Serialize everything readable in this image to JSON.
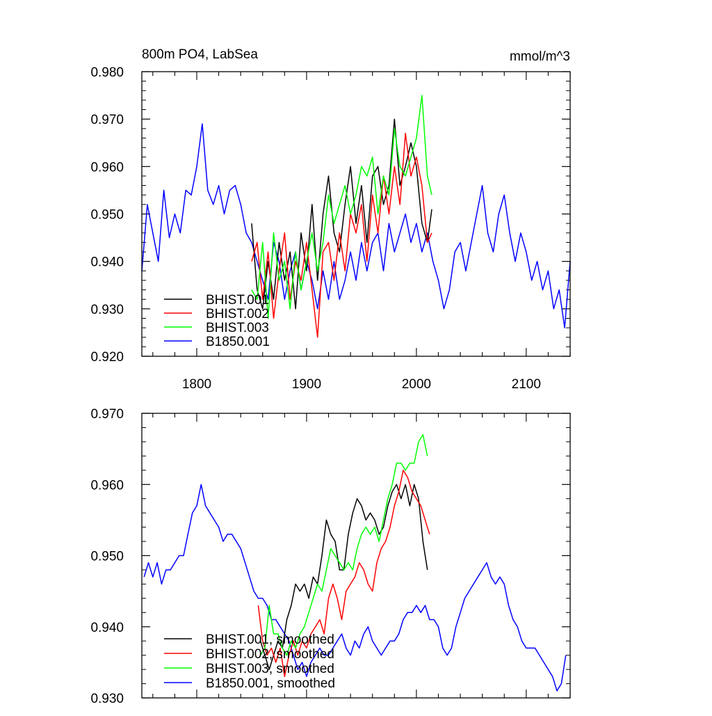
{
  "chart_data": [
    {
      "type": "line",
      "title": "800m PO4, LabSea",
      "units": "mmol/m^3",
      "xlabel": "",
      "ylabel": "",
      "xlim": [
        1750,
        2140
      ],
      "ylim": [
        0.92,
        0.98
      ],
      "xticks": [
        1800,
        1900,
        2000,
        2100
      ],
      "xtick_labels": [
        "1800",
        "1900",
        "2000",
        "2100"
      ],
      "yticks": [
        0.92,
        0.93,
        0.94,
        0.95,
        0.96,
        0.97,
        0.98
      ],
      "ytick_labels": [
        "0.920",
        "0.930",
        "0.940",
        "0.950",
        "0.960",
        "0.970",
        "0.980"
      ],
      "grid": false,
      "legend_position": "bottom-left",
      "series": [
        {
          "name": "BHIST.001",
          "color": "#000000",
          "x": [
            1850,
            1855,
            1860,
            1865,
            1870,
            1875,
            1880,
            1885,
            1890,
            1895,
            1900,
            1905,
            1910,
            1915,
            1920,
            1925,
            1930,
            1935,
            1940,
            1945,
            1950,
            1955,
            1960,
            1965,
            1970,
            1975,
            1980,
            1985,
            1990,
            1995,
            2000,
            2005,
            2010,
            2014
          ],
          "y": [
            0.948,
            0.934,
            0.93,
            0.94,
            0.932,
            0.944,
            0.936,
            0.942,
            0.93,
            0.946,
            0.938,
            0.952,
            0.936,
            0.95,
            0.958,
            0.946,
            0.942,
            0.952,
            0.96,
            0.948,
            0.956,
            0.944,
            0.958,
            0.96,
            0.952,
            0.956,
            0.97,
            0.956,
            0.96,
            0.965,
            0.96,
            0.948,
            0.944,
            0.951
          ]
        },
        {
          "name": "BHIST.002",
          "color": "#ff0000",
          "x": [
            1850,
            1855,
            1860,
            1865,
            1870,
            1875,
            1880,
            1885,
            1890,
            1895,
            1900,
            1905,
            1910,
            1915,
            1920,
            1925,
            1930,
            1935,
            1940,
            1945,
            1950,
            1955,
            1960,
            1965,
            1970,
            1975,
            1980,
            1985,
            1990,
            1995,
            2000,
            2005,
            2010,
            2014
          ],
          "y": [
            0.94,
            0.944,
            0.932,
            0.942,
            0.928,
            0.938,
            0.946,
            0.932,
            0.94,
            0.936,
            0.944,
            0.934,
            0.924,
            0.942,
            0.944,
            0.936,
            0.946,
            0.938,
            0.95,
            0.946,
            0.952,
            0.94,
            0.954,
            0.946,
            0.958,
            0.95,
            0.96,
            0.952,
            0.967,
            0.958,
            0.962,
            0.956,
            0.944,
            0.946
          ]
        },
        {
          "name": "BHIST.003",
          "color": "#00ff00",
          "x": [
            1850,
            1855,
            1860,
            1865,
            1870,
            1875,
            1880,
            1885,
            1890,
            1895,
            1900,
            1905,
            1910,
            1915,
            1920,
            1925,
            1930,
            1935,
            1940,
            1945,
            1950,
            1955,
            1960,
            1965,
            1970,
            1975,
            1980,
            1985,
            1990,
            1995,
            2000,
            2005,
            2010,
            2014
          ],
          "y": [
            0.934,
            0.932,
            0.944,
            0.928,
            0.946,
            0.936,
            0.94,
            0.93,
            0.942,
            0.934,
            0.94,
            0.946,
            0.938,
            0.944,
            0.954,
            0.948,
            0.952,
            0.956,
            0.95,
            0.954,
            0.96,
            0.958,
            0.962,
            0.95,
            0.958,
            0.954,
            0.968,
            0.96,
            0.958,
            0.962,
            0.966,
            0.975,
            0.958,
            0.954
          ]
        },
        {
          "name": "B1850.001",
          "color": "#0000ff",
          "x": [
            1750,
            1755,
            1760,
            1765,
            1770,
            1775,
            1780,
            1785,
            1790,
            1795,
            1800,
            1805,
            1810,
            1815,
            1820,
            1825,
            1830,
            1835,
            1840,
            1845,
            1850,
            1855,
            1860,
            1865,
            1870,
            1875,
            1880,
            1885,
            1890,
            1895,
            1900,
            1905,
            1910,
            1915,
            1920,
            1925,
            1930,
            1935,
            1940,
            1945,
            1950,
            1955,
            1960,
            1965,
            1970,
            1975,
            1980,
            1985,
            1990,
            1995,
            2000,
            2005,
            2010,
            2015,
            2020,
            2025,
            2030,
            2035,
            2040,
            2045,
            2050,
            2055,
            2060,
            2065,
            2070,
            2075,
            2080,
            2085,
            2090,
            2095,
            2100,
            2105,
            2110,
            2115,
            2120,
            2125,
            2130,
            2135,
            2140
          ],
          "y": [
            0.938,
            0.952,
            0.946,
            0.94,
            0.955,
            0.945,
            0.95,
            0.946,
            0.955,
            0.954,
            0.96,
            0.969,
            0.955,
            0.952,
            0.956,
            0.95,
            0.955,
            0.956,
            0.952,
            0.946,
            0.944,
            0.94,
            0.936,
            0.932,
            0.944,
            0.94,
            0.932,
            0.938,
            0.942,
            0.934,
            0.94,
            0.936,
            0.93,
            0.938,
            0.932,
            0.94,
            0.932,
            0.936,
            0.942,
            0.936,
            0.944,
            0.938,
            0.944,
            0.946,
            0.938,
            0.948,
            0.942,
            0.946,
            0.95,
            0.944,
            0.948,
            0.942,
            0.946,
            0.94,
            0.936,
            0.93,
            0.934,
            0.942,
            0.944,
            0.938,
            0.944,
            0.95,
            0.956,
            0.946,
            0.942,
            0.95,
            0.954,
            0.946,
            0.94,
            0.946,
            0.942,
            0.936,
            0.94,
            0.934,
            0.938,
            0.93,
            0.934,
            0.926,
            0.94
          ]
        }
      ],
      "legend": [
        "BHIST.001",
        "BHIST.002",
        "BHIST.003",
        "B1850.001"
      ]
    },
    {
      "type": "line",
      "title": "",
      "xlabel": "",
      "ylabel": "",
      "xlim": [
        1750,
        2140
      ],
      "ylim": [
        0.93,
        0.97
      ],
      "xticks": [
        1800,
        1900,
        2000,
        2100
      ],
      "yticks": [
        0.93,
        0.94,
        0.95,
        0.96,
        0.97
      ],
      "ytick_labels": [
        "0.930",
        "0.940",
        "0.950",
        "0.960",
        "0.970"
      ],
      "grid": false,
      "legend_position": "bottom-left",
      "series": [
        {
          "name": "BHIST.001, smoothed",
          "color": "#000000",
          "x": [
            1858,
            1862,
            1866,
            1870,
            1874,
            1878,
            1882,
            1886,
            1890,
            1894,
            1898,
            1902,
            1906,
            1910,
            1914,
            1918,
            1922,
            1926,
            1930,
            1934,
            1938,
            1942,
            1946,
            1950,
            1954,
            1958,
            1962,
            1966,
            1970,
            1974,
            1978,
            1982,
            1986,
            1990,
            1994,
            1998,
            2002,
            2006,
            2010
          ],
          "y": [
            0.938,
            0.936,
            0.934,
            0.936,
            0.938,
            0.937,
            0.941,
            0.943,
            0.946,
            0.945,
            0.946,
            0.944,
            0.947,
            0.946,
            0.95,
            0.955,
            0.953,
            0.952,
            0.948,
            0.948,
            0.953,
            0.956,
            0.958,
            0.957,
            0.955,
            0.956,
            0.955,
            0.953,
            0.954,
            0.957,
            0.959,
            0.96,
            0.958,
            0.96,
            0.957,
            0.96,
            0.958,
            0.952,
            0.948
          ]
        },
        {
          "name": "BHIST.002, smoothed",
          "color": "#ff0000",
          "x": [
            1856,
            1860,
            1864,
            1868,
            1872,
            1876,
            1880,
            1884,
            1888,
            1892,
            1896,
            1900,
            1904,
            1908,
            1912,
            1916,
            1920,
            1924,
            1928,
            1932,
            1936,
            1940,
            1944,
            1948,
            1952,
            1956,
            1960,
            1964,
            1968,
            1972,
            1976,
            1980,
            1984,
            1988,
            1992,
            1996,
            2000,
            2004,
            2008,
            2012
          ],
          "y": [
            0.943,
            0.938,
            0.936,
            0.937,
            0.935,
            0.937,
            0.933,
            0.936,
            0.938,
            0.936,
            0.938,
            0.937,
            0.939,
            0.94,
            0.941,
            0.939,
            0.944,
            0.946,
            0.944,
            0.941,
            0.945,
            0.946,
            0.947,
            0.949,
            0.948,
            0.946,
            0.945,
            0.949,
            0.951,
            0.952,
            0.954,
            0.957,
            0.959,
            0.962,
            0.961,
            0.959,
            0.958,
            0.957,
            0.955,
            0.953
          ]
        },
        {
          "name": "BHIST.003, smoothed",
          "color": "#00ff00",
          "x": [
            1858,
            1862,
            1866,
            1870,
            1874,
            1878,
            1882,
            1886,
            1890,
            1894,
            1898,
            1902,
            1906,
            1910,
            1914,
            1918,
            1922,
            1926,
            1930,
            1934,
            1938,
            1942,
            1946,
            1950,
            1954,
            1958,
            1962,
            1966,
            1970,
            1974,
            1978,
            1982,
            1986,
            1990,
            1994,
            1998,
            2002,
            2006,
            2010
          ],
          "y": [
            0.936,
            0.937,
            0.943,
            0.939,
            0.939,
            0.937,
            0.936,
            0.938,
            0.937,
            0.939,
            0.94,
            0.942,
            0.944,
            0.946,
            0.945,
            0.948,
            0.951,
            0.95,
            0.949,
            0.948,
            0.949,
            0.948,
            0.951,
            0.953,
            0.954,
            0.953,
            0.954,
            0.952,
            0.955,
            0.958,
            0.96,
            0.963,
            0.963,
            0.962,
            0.963,
            0.963,
            0.966,
            0.967,
            0.964
          ]
        },
        {
          "name": "B1850.001, smoothed",
          "color": "#0000ff",
          "x": [
            1752,
            1756,
            1760,
            1764,
            1768,
            1772,
            1776,
            1780,
            1784,
            1788,
            1792,
            1796,
            1800,
            1804,
            1808,
            1812,
            1816,
            1820,
            1824,
            1828,
            1832,
            1836,
            1840,
            1844,
            1848,
            1852,
            1856,
            1860,
            1864,
            1868,
            1872,
            1876,
            1880,
            1884,
            1888,
            1892,
            1896,
            1900,
            1904,
            1908,
            1912,
            1916,
            1920,
            1924,
            1928,
            1932,
            1936,
            1940,
            1944,
            1948,
            1952,
            1956,
            1960,
            1964,
            1968,
            1972,
            1976,
            1980,
            1984,
            1988,
            1992,
            1996,
            2000,
            2004,
            2008,
            2012,
            2016,
            2020,
            2024,
            2028,
            2032,
            2036,
            2040,
            2044,
            2048,
            2052,
            2056,
            2060,
            2064,
            2068,
            2072,
            2076,
            2080,
            2084,
            2088,
            2092,
            2096,
            2100,
            2104,
            2108,
            2112,
            2116,
            2120,
            2124,
            2128,
            2132,
            2136
          ],
          "y": [
            0.947,
            0.949,
            0.947,
            0.949,
            0.946,
            0.948,
            0.948,
            0.949,
            0.95,
            0.95,
            0.953,
            0.956,
            0.957,
            0.96,
            0.957,
            0.956,
            0.955,
            0.954,
            0.952,
            0.953,
            0.953,
            0.952,
            0.951,
            0.949,
            0.947,
            0.945,
            0.944,
            0.944,
            0.943,
            0.941,
            0.941,
            0.94,
            0.939,
            0.938,
            0.936,
            0.934,
            0.935,
            0.933,
            0.935,
            0.936,
            0.937,
            0.936,
            0.936,
            0.937,
            0.938,
            0.939,
            0.937,
            0.936,
            0.938,
            0.937,
            0.939,
            0.94,
            0.938,
            0.937,
            0.936,
            0.937,
            0.938,
            0.938,
            0.939,
            0.941,
            0.942,
            0.942,
            0.943,
            0.942,
            0.943,
            0.941,
            0.941,
            0.94,
            0.937,
            0.936,
            0.937,
            0.94,
            0.942,
            0.944,
            0.945,
            0.946,
            0.947,
            0.948,
            0.949,
            0.947,
            0.946,
            0.947,
            0.946,
            0.943,
            0.941,
            0.94,
            0.938,
            0.937,
            0.937,
            0.937,
            0.936,
            0.935,
            0.934,
            0.933,
            0.931,
            0.932,
            0.936
          ]
        }
      ],
      "legend": [
        "BHIST.001, smoothed",
        "BHIST.002, smoothed",
        "BHIST.003, smoothed",
        "B1850.001, smoothed"
      ]
    }
  ]
}
